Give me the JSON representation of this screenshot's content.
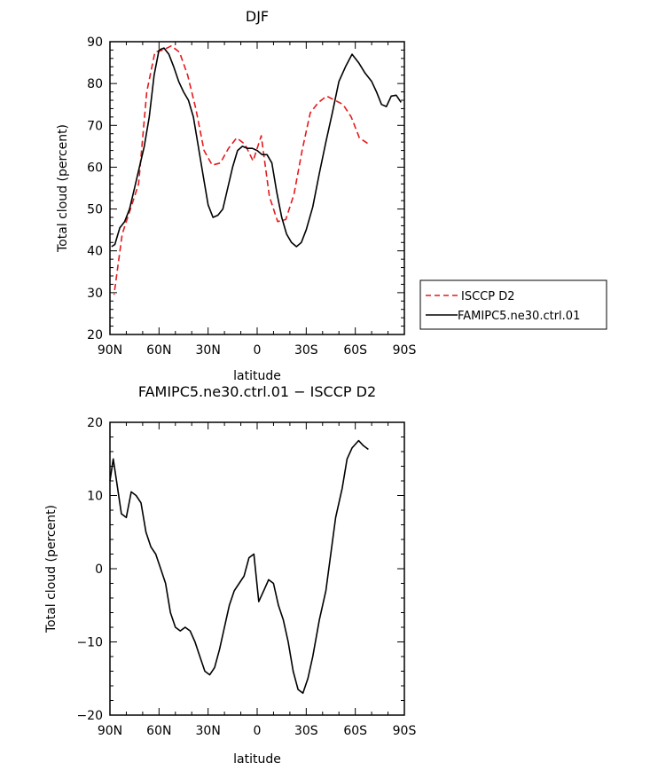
{
  "chart_data": [
    {
      "type": "line",
      "title": "DJF",
      "xlabel": "latitude",
      "ylabel": "Total cloud (percent)",
      "xlim": [
        90,
        -90
      ],
      "ylim": [
        20,
        90
      ],
      "x_ticks": [
        90,
        60,
        30,
        0,
        -30,
        -60,
        -90
      ],
      "x_tick_labels": [
        "90N",
        "60N",
        "30N",
        "0",
        "30S",
        "60S",
        "90S"
      ],
      "y_ticks": [
        20,
        30,
        40,
        50,
        60,
        70,
        80,
        90
      ],
      "y_tick_labels": [
        "20",
        "30",
        "40",
        "50",
        "60",
        "70",
        "80",
        "90"
      ],
      "grid": false,
      "legend": "right",
      "series": [
        {
          "name": "ISCCP D2",
          "color": "#e41a1c",
          "dash": "dashed",
          "x": [
            -67.5,
            -62.5,
            -57.5,
            -52.5,
            -47.5,
            -42.5,
            -37.5,
            -32.5,
            -27.5,
            -22.5,
            -17.5,
            -12.5,
            -7.5,
            -2.5,
            2.5,
            7.5,
            12.5,
            17.5,
            22.5,
            27.5,
            32.5,
            37.5,
            42.5,
            47.5,
            52.5,
            57.5,
            62.5,
            67.5,
            72.5,
            77.5,
            82.5,
            87.5
          ],
          "y": [
            65.7,
            67.0,
            72.0,
            75.0,
            76.0,
            77.0,
            75.5,
            73.0,
            64.0,
            53.5,
            47.5,
            47.0,
            53.0,
            67.5,
            61.5,
            65.5,
            67.0,
            64.5,
            61.0,
            60.5,
            64.0,
            74.0,
            82.0,
            87.5,
            89.0,
            88.0,
            87.5,
            78.0,
            56.0,
            50.0,
            44.0,
            29.5
          ]
        },
        {
          "name": "FAMIPC5.ne30.ctrl.01",
          "color": "#000000",
          "dash": "solid",
          "x": [
            -88,
            -85,
            -82,
            -79,
            -76,
            -73,
            -70,
            -66,
            -62,
            -58,
            -54,
            -50,
            -46,
            -42,
            -38,
            -34,
            -30,
            -27,
            -24,
            -21,
            -18,
            -15,
            -12,
            -9,
            -6,
            -3,
            0,
            3,
            6,
            9,
            12,
            15,
            18,
            21,
            24,
            27,
            30,
            33,
            36,
            39,
            42,
            45,
            48,
            51,
            54,
            57,
            60,
            63,
            66,
            69,
            72,
            75,
            78,
            81,
            84,
            87,
            89
          ],
          "y": [
            75.5,
            77.2,
            77.0,
            74.5,
            75.0,
            78.0,
            80.5,
            82.5,
            85.0,
            87.0,
            84.0,
            80.5,
            73.0,
            66.0,
            58.5,
            50.5,
            45.0,
            42.0,
            41.0,
            42.0,
            44.0,
            48.0,
            54.0,
            61.0,
            63.0,
            63.0,
            64.0,
            64.5,
            64.5,
            65.0,
            64.0,
            60.0,
            55.0,
            50.0,
            48.5,
            48.0,
            51.0,
            58.0,
            65.0,
            72.0,
            76.0,
            78.0,
            80.5,
            84.0,
            87.0,
            88.5,
            88.0,
            82.0,
            72.0,
            65.0,
            60.0,
            55.0,
            50.0,
            47.0,
            45.5,
            41.5,
            41.0
          ]
        }
      ]
    },
    {
      "type": "line",
      "title": "FAMIPC5.ne30.ctrl.01 − ISCCP D2",
      "xlabel": "latitude",
      "ylabel": "Total cloud (percent)",
      "xlim": [
        90,
        -90
      ],
      "ylim": [
        -20,
        20
      ],
      "x_ticks": [
        90,
        60,
        30,
        0,
        -30,
        -60,
        -90
      ],
      "x_tick_labels": [
        "90N",
        "60N",
        "30N",
        "0",
        "30S",
        "60S",
        "90S"
      ],
      "y_ticks": [
        -20,
        -10,
        0,
        10,
        20
      ],
      "y_tick_labels": [
        "−20",
        "−10",
        "0",
        "10",
        "20"
      ],
      "grid": false,
      "series": [
        {
          "color": "#000000",
          "dash": "solid",
          "x": [
            -68,
            -65,
            -62,
            -58,
            -55,
            -52,
            -48,
            -45,
            -42,
            -38,
            -34,
            -31,
            -28,
            -25,
            -22,
            -19,
            -16,
            -13,
            -10,
            -7,
            -4,
            -1,
            2,
            5,
            8,
            11,
            14,
            17,
            20,
            23,
            26,
            29,
            32,
            35,
            38,
            41,
            44,
            47,
            50,
            53,
            56,
            59,
            62,
            65,
            68,
            71,
            74,
            77,
            80,
            83,
            86,
            88,
            90
          ],
          "y": [
            16.3,
            16.8,
            17.5,
            16.5,
            15.0,
            11.0,
            7.0,
            2.0,
            -3.0,
            -7.0,
            -12.0,
            -15.0,
            -17.0,
            -16.5,
            -14.0,
            -10.0,
            -7.0,
            -5.0,
            -2.0,
            -1.5,
            -3.0,
            -4.5,
            2.0,
            1.5,
            -1.0,
            -2.0,
            -3.0,
            -5.0,
            -8.0,
            -11.0,
            -13.5,
            -14.5,
            -14.0,
            -12.0,
            -10.0,
            -8.5,
            -8.0,
            -8.5,
            -8.0,
            -6.0,
            -2.0,
            0.0,
            2.0,
            3.0,
            5.0,
            9.0,
            10.0,
            10.5,
            7.0,
            7.5,
            12.0,
            15.0,
            12.0
          ]
        }
      ]
    }
  ]
}
